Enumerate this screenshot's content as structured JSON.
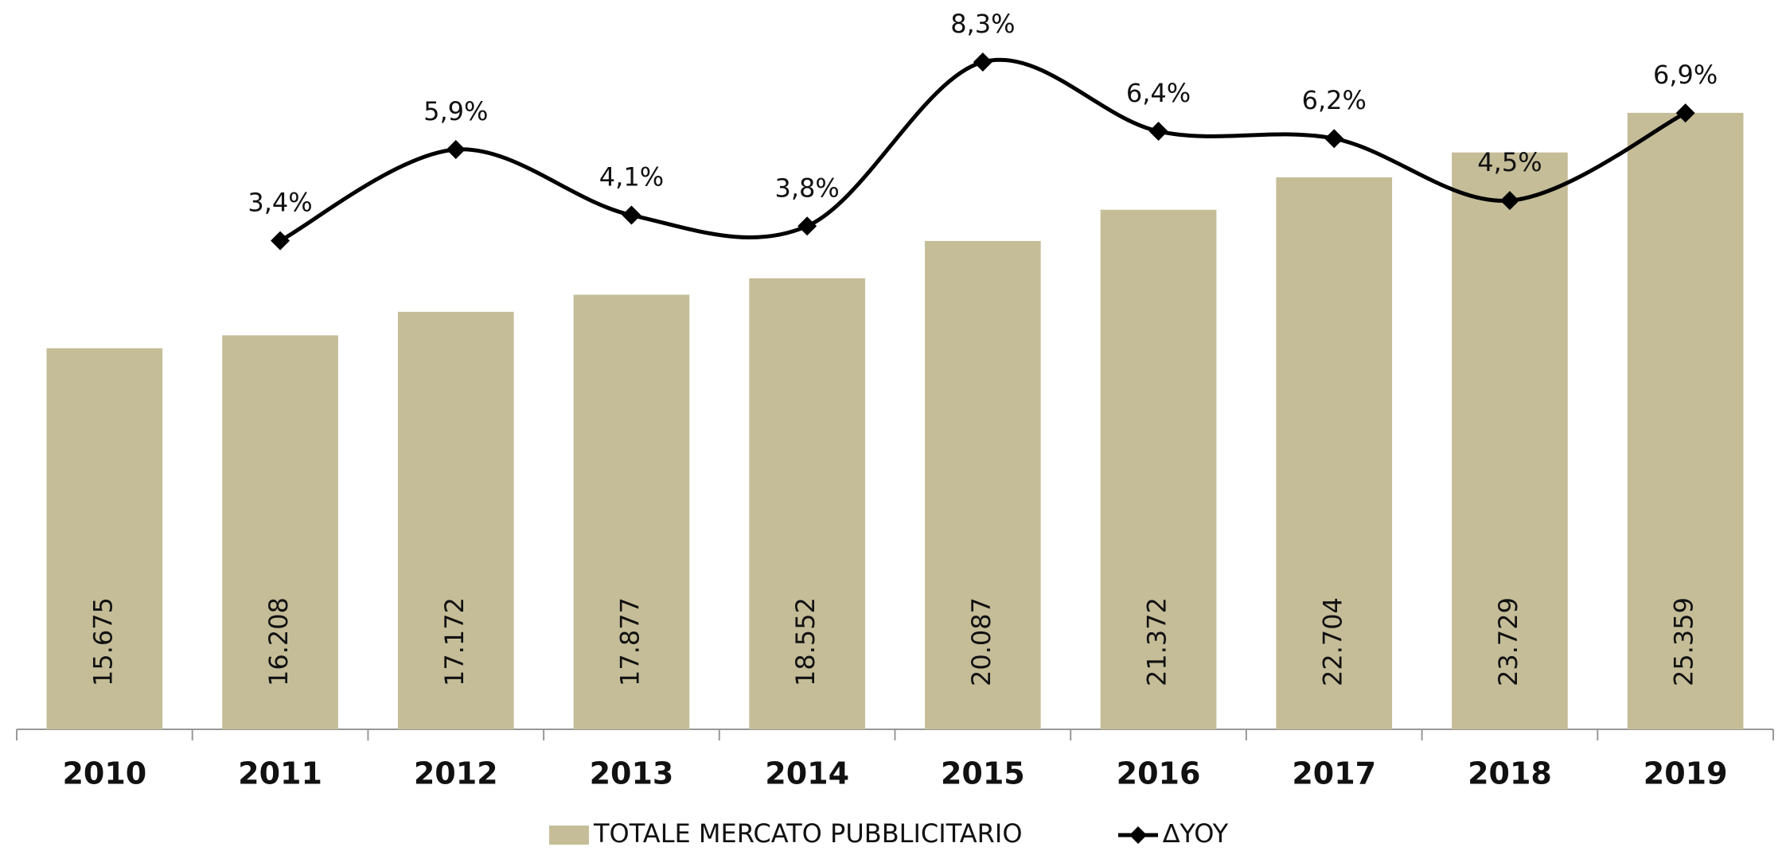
{
  "chart_data": {
    "type": "bar",
    "categories": [
      "2010",
      "2011",
      "2012",
      "2013",
      "2014",
      "2015",
      "2016",
      "2017",
      "2018",
      "2019"
    ],
    "series": [
      {
        "name": "TOTALE MERCATO PUBBLICITARIO",
        "type": "bar",
        "color": "#c5bd98",
        "values": [
          15675,
          16208,
          17172,
          17877,
          18552,
          20087,
          21372,
          22704,
          23729,
          25359
        ],
        "value_labels": [
          "15.675",
          "16.208",
          "17.172",
          "17.877",
          "18.552",
          "20.087",
          "21.372",
          "22.704",
          "23.729",
          "25.359"
        ]
      },
      {
        "name": "∆YOY",
        "type": "line",
        "axis": "y2",
        "color": "#000000",
        "values": [
          null,
          3.4,
          5.9,
          4.1,
          3.8,
          8.3,
          6.4,
          6.2,
          4.5,
          6.9
        ],
        "value_labels": [
          null,
          "3,4%",
          "5,9%",
          "4,1%",
          "3,8%",
          "8,3%",
          "6,4%",
          "6,2%",
          "4,5%",
          "6,9%"
        ]
      }
    ],
    "ylim": [
      0,
      30000
    ],
    "y2lim": [
      -10,
      10
    ],
    "legend": "bottom"
  }
}
